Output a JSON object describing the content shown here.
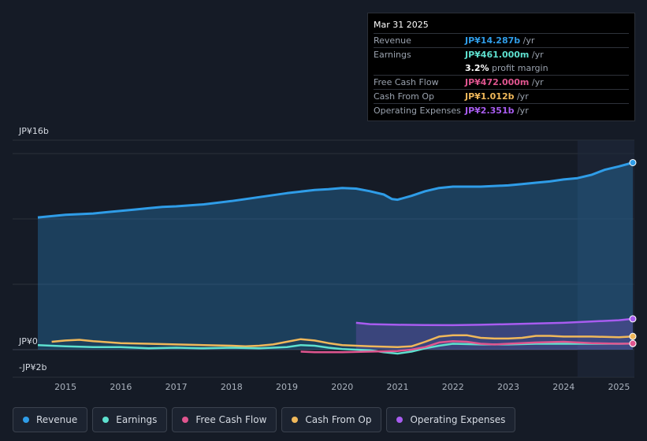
{
  "tooltip": {
    "date": "Mar 31 2025",
    "rows": [
      {
        "label": "Revenue",
        "value": "JP¥14.287b",
        "unit": " /yr",
        "color": "#2f9de8"
      },
      {
        "label": "Earnings",
        "value": "JP¥461.000m",
        "unit": " /yr",
        "color": "#5ee0cf"
      },
      {
        "label": "",
        "value": "3.2%",
        "unit": " profit margin",
        "color": "#ffffff"
      },
      {
        "label": "Free Cash Flow",
        "value": "JP¥472.000m",
        "unit": " /yr",
        "color": "#e0558f"
      },
      {
        "label": "Cash From Op",
        "value": "JP¥1.012b",
        "unit": " /yr",
        "color": "#f0b85a"
      },
      {
        "label": "Operating Expenses",
        "value": "JP¥2.351b",
        "unit": " /yr",
        "color": "#a85cf0"
      }
    ]
  },
  "legend": [
    {
      "label": "Revenue",
      "color": "#2f9de8"
    },
    {
      "label": "Earnings",
      "color": "#5ee0cf"
    },
    {
      "label": "Free Cash Flow",
      "color": "#e0558f"
    },
    {
      "label": "Cash From Op",
      "color": "#f0b85a"
    },
    {
      "label": "Operating Expenses",
      "color": "#a85cf0"
    }
  ],
  "chart_data": {
    "type": "area",
    "y_axis_labels": [
      "JP¥16b",
      "JP¥0",
      "-JP¥2b"
    ],
    "ylim": [
      -2,
      16
    ],
    "xlim": [
      2014.5,
      2025.25
    ],
    "x_ticks": [
      2015,
      2016,
      2017,
      2018,
      2019,
      2020,
      2021,
      2022,
      2023,
      2024,
      2025
    ],
    "forecast_start": 2024.25,
    "series": [
      {
        "name": "Revenue",
        "color": "#2f9de8",
        "fill": true,
        "x": [
          2014.5,
          2015.0,
          2015.5,
          2015.75,
          2016.0,
          2016.25,
          2016.5,
          2016.75,
          2017.0,
          2017.5,
          2018.0,
          2018.5,
          2019.0,
          2019.5,
          2019.75,
          2020.0,
          2020.25,
          2020.5,
          2020.75,
          2020.9,
          2021.0,
          2021.25,
          2021.5,
          2021.75,
          2022.0,
          2022.5,
          2023.0,
          2023.25,
          2023.5,
          2023.75,
          2024.0,
          2024.25,
          2024.5,
          2024.75,
          2025.0,
          2025.25
        ],
        "values": [
          10.1,
          10.3,
          10.4,
          10.5,
          10.6,
          10.7,
          10.8,
          10.9,
          10.95,
          11.1,
          11.35,
          11.65,
          11.95,
          12.2,
          12.25,
          12.35,
          12.3,
          12.1,
          11.85,
          11.5,
          11.45,
          11.75,
          12.1,
          12.35,
          12.45,
          12.45,
          12.55,
          12.65,
          12.75,
          12.85,
          13.0,
          13.1,
          13.35,
          13.75,
          14.0,
          14.287
        ]
      },
      {
        "name": "Operating Expenses",
        "color": "#a85cf0",
        "fill": true,
        "x": [
          2020.25,
          2020.5,
          2021.0,
          2021.5,
          2022.0,
          2022.5,
          2023.0,
          2023.5,
          2024.0,
          2024.5,
          2025.0,
          2025.25
        ],
        "values": [
          2.05,
          1.95,
          1.9,
          1.88,
          1.87,
          1.9,
          1.95,
          2.0,
          2.05,
          2.15,
          2.25,
          2.351
        ]
      },
      {
        "name": "Cash From Op",
        "color": "#f0b85a",
        "fill": false,
        "x": [
          2014.75,
          2015.0,
          2015.25,
          2015.5,
          2016.0,
          2016.5,
          2017.0,
          2017.5,
          2018.0,
          2018.25,
          2018.5,
          2018.75,
          2019.0,
          2019.25,
          2019.5,
          2019.75,
          2020.0,
          2020.5,
          2021.0,
          2021.25,
          2021.5,
          2021.75,
          2022.0,
          2022.25,
          2022.5,
          2022.75,
          2023.0,
          2023.25,
          2023.5,
          2023.75,
          2024.0,
          2024.5,
          2025.0,
          2025.25
        ],
        "values": [
          0.6,
          0.7,
          0.75,
          0.65,
          0.5,
          0.45,
          0.4,
          0.35,
          0.3,
          0.25,
          0.3,
          0.4,
          0.6,
          0.8,
          0.7,
          0.5,
          0.35,
          0.25,
          0.2,
          0.25,
          0.6,
          1.0,
          1.1,
          1.1,
          0.9,
          0.85,
          0.85,
          0.9,
          1.05,
          1.05,
          1.0,
          1.0,
          0.95,
          1.012
        ]
      },
      {
        "name": "Earnings",
        "color": "#5ee0cf",
        "fill": false,
        "x": [
          2014.5,
          2015.0,
          2015.5,
          2016.0,
          2016.5,
          2017.0,
          2017.5,
          2018.0,
          2018.5,
          2019.0,
          2019.25,
          2019.5,
          2019.75,
          2020.0,
          2020.5,
          2020.75,
          2021.0,
          2021.25,
          2021.5,
          2021.75,
          2022.0,
          2022.5,
          2023.0,
          2023.5,
          2024.0,
          2024.5,
          2025.0,
          2025.25
        ],
        "values": [
          0.35,
          0.25,
          0.2,
          0.2,
          0.1,
          0.15,
          0.1,
          0.15,
          0.1,
          0.2,
          0.35,
          0.3,
          0.15,
          0.05,
          -0.05,
          -0.2,
          -0.3,
          -0.15,
          0.1,
          0.3,
          0.45,
          0.4,
          0.4,
          0.45,
          0.45,
          0.45,
          0.45,
          0.461
        ]
      },
      {
        "name": "Free Cash Flow",
        "color": "#e0558f",
        "fill": false,
        "x": [
          2019.25,
          2019.5,
          2020.0,
          2020.5,
          2021.0,
          2021.25,
          2021.5,
          2021.75,
          2022.0,
          2022.25,
          2022.5,
          2022.75,
          2023.0,
          2023.5,
          2024.0,
          2024.5,
          2025.0,
          2025.25
        ],
        "values": [
          -0.15,
          -0.2,
          -0.2,
          -0.15,
          -0.1,
          0.0,
          0.2,
          0.55,
          0.65,
          0.6,
          0.45,
          0.4,
          0.45,
          0.55,
          0.6,
          0.5,
          0.45,
          0.472
        ]
      }
    ]
  }
}
